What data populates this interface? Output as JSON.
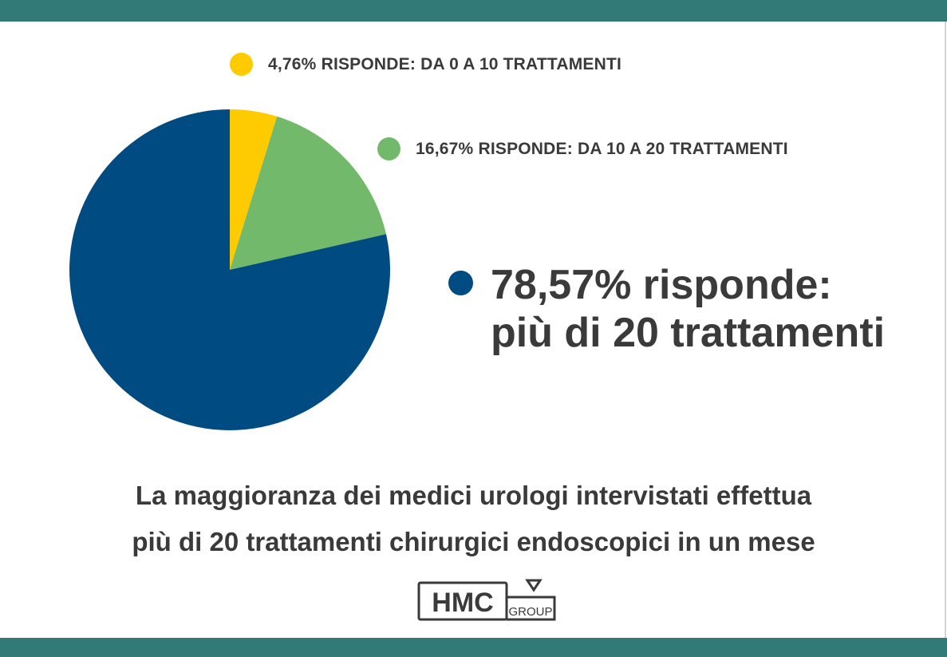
{
  "chart_data": {
    "type": "pie",
    "categories": [
      "4,76% RISPONDE: DA 0 A 10 TRATTAMENTI",
      "16,67% RISPONDE: DA 10 A 20 TRATTAMENTI",
      "78,57% risponde: più di 20 trattamenti"
    ],
    "values": [
      4.76,
      16.67,
      78.57
    ],
    "colors": [
      "#fecb00",
      "#72b96b",
      "#004b82"
    ],
    "legend": [
      {
        "label": "4,76% RISPONDE: DA 0 A 10 TRATTAMENTI",
        "color": "#fecb00"
      },
      {
        "label": "16,67% RISPONDE: DA 10 A 20 TRATTAMENTI",
        "color": "#72b96b"
      },
      {
        "line1": "78,57% risponde:",
        "line2": "più di 20 trattamenti",
        "color": "#004b82"
      }
    ]
  },
  "caption": {
    "line1": "La maggioranza dei medici urologi intervistati effettua",
    "line2": "più di 20 trattamenti chirurgici endoscopici in un mese"
  },
  "logo": {
    "mark": "HMC",
    "text": "GROUP"
  },
  "colors": {
    "band": "#327a78",
    "text": "#3a3a3a"
  }
}
